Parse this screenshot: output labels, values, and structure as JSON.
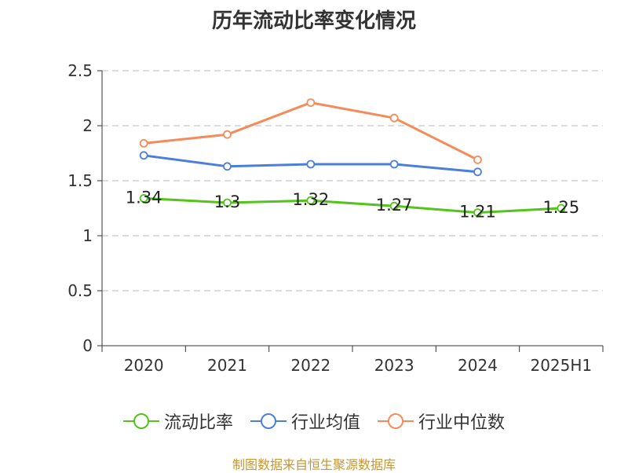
{
  "chart_data": {
    "type": "line",
    "title": "历年流动比率变化情况",
    "categories": [
      "2020",
      "2021",
      "2022",
      "2023",
      "2024",
      "2025H1"
    ],
    "ylim": [
      0,
      2.5
    ],
    "yticks": [
      "0",
      "0.5",
      "1",
      "1.5",
      "2",
      "2.5"
    ],
    "grid": true,
    "legend_position": "bottom",
    "series": [
      {
        "name": "流动比率",
        "color": "#52c41a",
        "values": [
          1.34,
          1.3,
          1.32,
          1.27,
          1.21,
          1.25
        ],
        "labels": [
          "1.34",
          "1.3",
          "1.32",
          "1.27",
          "1.21",
          "1.25"
        ]
      },
      {
        "name": "行业均值",
        "color": "#4a7fdc",
        "values": [
          1.73,
          1.63,
          1.65,
          1.65,
          1.58,
          null
        ]
      },
      {
        "name": "行业中位数",
        "color": "#f58b5a",
        "values": [
          1.84,
          1.92,
          2.21,
          2.07,
          1.69,
          null
        ]
      }
    ]
  },
  "source": {
    "text": "制图数据来自恒生聚源数据库",
    "color": "#c8962e"
  }
}
